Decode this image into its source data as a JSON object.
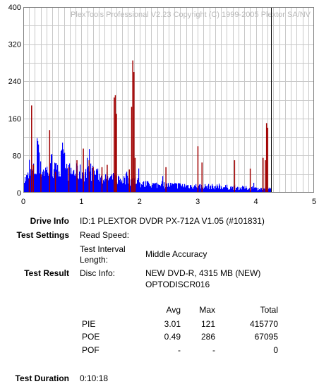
{
  "chart_data": {
    "type": "bar",
    "watermark": "PlexTools Professional V2.23 Copyright (C) 1999-2005 Plextor SA/NV",
    "x_ticks": [
      "0",
      "1",
      "2",
      "3",
      "4",
      "5"
    ],
    "y_ticks": [
      "400",
      "320",
      "240",
      "160",
      "80",
      "0"
    ],
    "xlim": [
      0,
      5
    ],
    "ylim": [
      0,
      400
    ],
    "grid": true,
    "end_marker_x": 4.26,
    "colors": {
      "pie": "#0000ff",
      "poe": "#a00000",
      "grid": "#c8c8c8",
      "marker": "#000000"
    },
    "poe_spikes": [
      {
        "x": 0.1,
        "y": 30
      },
      {
        "x": 0.14,
        "y": 188
      },
      {
        "x": 0.17,
        "y": 60
      },
      {
        "x": 0.3,
        "y": 40
      },
      {
        "x": 0.45,
        "y": 135
      },
      {
        "x": 0.55,
        "y": 45
      },
      {
        "x": 0.78,
        "y": 55
      },
      {
        "x": 0.92,
        "y": 70
      },
      {
        "x": 1.03,
        "y": 95
      },
      {
        "x": 1.13,
        "y": 70
      },
      {
        "x": 1.2,
        "y": 55
      },
      {
        "x": 1.35,
        "y": 55
      },
      {
        "x": 1.44,
        "y": 60
      },
      {
        "x": 1.56,
        "y": 205
      },
      {
        "x": 1.58,
        "y": 210
      },
      {
        "x": 1.6,
        "y": 170
      },
      {
        "x": 1.82,
        "y": 50
      },
      {
        "x": 1.86,
        "y": 185
      },
      {
        "x": 1.88,
        "y": 285
      },
      {
        "x": 1.9,
        "y": 260
      },
      {
        "x": 1.92,
        "y": 75
      },
      {
        "x": 2.45,
        "y": 55
      },
      {
        "x": 3.0,
        "y": 100
      },
      {
        "x": 3.07,
        "y": 65
      },
      {
        "x": 3.63,
        "y": 70
      },
      {
        "x": 3.9,
        "y": 52
      },
      {
        "x": 4.12,
        "y": 75
      },
      {
        "x": 4.16,
        "y": 70
      },
      {
        "x": 4.18,
        "y": 150
      },
      {
        "x": 4.2,
        "y": 140
      }
    ]
  },
  "info": {
    "drive_info_label": "Drive Info",
    "drive_info_value": "ID:1 PLEXTOR DVDR PX-712A V1.05 (#101831)",
    "test_settings_label": "Test Settings",
    "read_speed_label": "Read Speed:",
    "interval_label_1": "Test Interval",
    "interval_label_2": "Length:",
    "interval_value": "Middle Accuracy",
    "test_result_label": "Test Result",
    "disc_info_label": "Disc Info:",
    "disc_info_value_1": "NEW DVD-R, 4315 MB (NEW)",
    "disc_info_value_2": "OPTODISCR016"
  },
  "results": {
    "headers": [
      "Avg",
      "Max",
      "Total"
    ],
    "rows": [
      {
        "name": "PIE",
        "avg": "3.01",
        "max": "121",
        "total": "415770"
      },
      {
        "name": "POE",
        "avg": "0.49",
        "max": "286",
        "total": "67095"
      },
      {
        "name": "POF",
        "avg": "-",
        "max": "-",
        "total": "0"
      }
    ]
  },
  "duration": {
    "label": "Test Duration",
    "value": "0:10:18"
  }
}
